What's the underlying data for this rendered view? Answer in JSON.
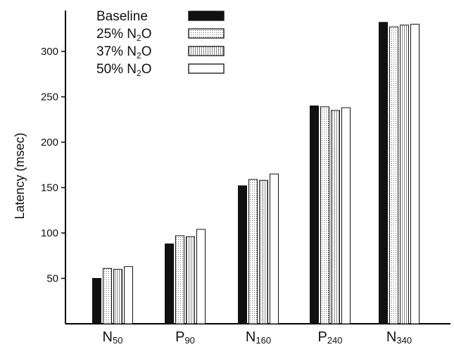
{
  "chart_data": {
    "type": "bar",
    "title": "",
    "xlabel": "",
    "ylabel": "Latency (msec)",
    "ylim": [
      0,
      345
    ],
    "yticks": [
      50,
      100,
      150,
      200,
      250,
      300
    ],
    "grid": false,
    "legend_position": "top-left",
    "categories": [
      {
        "main": "N",
        "sub": "50"
      },
      {
        "main": "P",
        "sub": "90"
      },
      {
        "main": "N",
        "sub": "160"
      },
      {
        "main": "P",
        "sub": "240"
      },
      {
        "main": "N",
        "sub": "340"
      }
    ],
    "series": [
      {
        "name": "Baseline",
        "legend": {
          "pre": "Baseline",
          "sub": "",
          "post": ""
        },
        "fill": "solid",
        "values": [
          50,
          88,
          152,
          240,
          332
        ]
      },
      {
        "name": "25% N2O",
        "legend": {
          "pre": "25% N",
          "sub": "2",
          "post": "O"
        },
        "fill": "dotted",
        "values": [
          61,
          97,
          159,
          239,
          327
        ]
      },
      {
        "name": "37% N2O",
        "legend": {
          "pre": "37% N",
          "sub": "2",
          "post": "O"
        },
        "fill": "striped",
        "values": [
          60,
          96,
          158,
          235,
          329
        ]
      },
      {
        "name": "50% N2O",
        "legend": {
          "pre": "50% N",
          "sub": "2",
          "post": "O"
        },
        "fill": "open",
        "values": [
          63,
          104,
          165,
          238,
          330
        ]
      }
    ]
  }
}
